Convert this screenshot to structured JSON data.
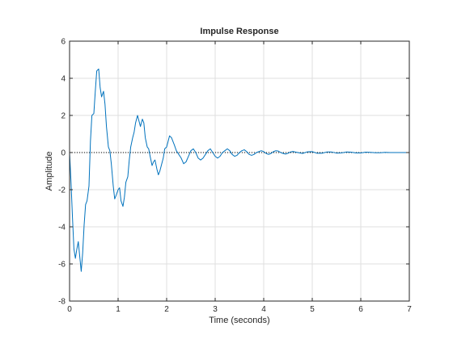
{
  "chart_data": {
    "type": "line",
    "title": "Impulse Response",
    "xlabel": "Time (seconds)",
    "ylabel": "Amplitude",
    "xlim": [
      0,
      7
    ],
    "ylim": [
      -8,
      6
    ],
    "xticks": [
      0,
      1,
      2,
      3,
      4,
      5,
      6,
      7
    ],
    "yticks": [
      -8,
      -6,
      -4,
      -2,
      0,
      2,
      4,
      6
    ],
    "grid": true,
    "reference_line": {
      "y": 0,
      "style": "dotted"
    },
    "series": [
      {
        "color": "#0072bd",
        "x": [
          0,
          0.03,
          0.06,
          0.09,
          0.12,
          0.15,
          0.18,
          0.21,
          0.24,
          0.27,
          0.3,
          0.33,
          0.36,
          0.4,
          0.43,
          0.46,
          0.5,
          0.53,
          0.56,
          0.6,
          0.63,
          0.66,
          0.7,
          0.73,
          0.76,
          0.8,
          0.83,
          0.86,
          0.9,
          0.93,
          0.96,
          1.0,
          1.03,
          1.06,
          1.1,
          1.13,
          1.16,
          1.2,
          1.23,
          1.26,
          1.3,
          1.33,
          1.36,
          1.4,
          1.43,
          1.46,
          1.5,
          1.53,
          1.56,
          1.6,
          1.63,
          1.66,
          1.7,
          1.73,
          1.76,
          1.8,
          1.83,
          1.86,
          1.9,
          1.93,
          1.96,
          2.0,
          2.03,
          2.06,
          2.1,
          2.13,
          2.16,
          2.2,
          2.25,
          2.3,
          2.35,
          2.4,
          2.45,
          2.5,
          2.55,
          2.6,
          2.65,
          2.7,
          2.75,
          2.8,
          2.85,
          2.9,
          2.95,
          3.0,
          3.05,
          3.1,
          3.15,
          3.2,
          3.25,
          3.3,
          3.35,
          3.4,
          3.45,
          3.5,
          3.55,
          3.6,
          3.65,
          3.7,
          3.75,
          3.8,
          3.85,
          3.9,
          3.95,
          4.0,
          4.05,
          4.1,
          4.15,
          4.2,
          4.25,
          4.3,
          4.35,
          4.4,
          4.45,
          4.5,
          4.55,
          4.6,
          4.7,
          4.8,
          4.9,
          5.0,
          5.1,
          5.2,
          5.3,
          5.4,
          5.5,
          5.6,
          5.7,
          5.8,
          5.9,
          6.0,
          6.1,
          6.2,
          6.3,
          6.4,
          6.5,
          6.6,
          6.7,
          6.8,
          6.9,
          7.0
        ],
        "y": [
          0,
          -1.6,
          -3.5,
          -5.2,
          -5.7,
          -5.2,
          -4.8,
          -5.6,
          -6.4,
          -5.4,
          -3.9,
          -2.8,
          -2.6,
          -1.8,
          0.6,
          2.0,
          2.1,
          3.3,
          4.4,
          4.5,
          3.5,
          3.0,
          3.3,
          2.6,
          1.4,
          0.3,
          0.1,
          -0.6,
          -1.8,
          -2.5,
          -2.3,
          -2.0,
          -1.9,
          -2.6,
          -2.9,
          -2.4,
          -1.6,
          -1.3,
          -0.4,
          0.3,
          0.8,
          1.1,
          1.6,
          2.0,
          1.7,
          1.4,
          1.8,
          1.6,
          0.8,
          0.3,
          0.2,
          -0.2,
          -0.7,
          -0.5,
          -0.4,
          -0.9,
          -1.2,
          -1.0,
          -0.6,
          -0.3,
          0.2,
          0.3,
          0.6,
          0.9,
          0.8,
          0.6,
          0.4,
          0.1,
          -0.1,
          -0.3,
          -0.6,
          -0.5,
          -0.2,
          0.1,
          0.2,
          0.0,
          -0.3,
          -0.4,
          -0.3,
          -0.1,
          0.1,
          0.2,
          0.0,
          -0.2,
          -0.3,
          -0.2,
          0.0,
          0.1,
          0.2,
          0.1,
          -0.1,
          -0.2,
          -0.15,
          0.0,
          0.1,
          0.15,
          0.05,
          -0.1,
          -0.15,
          -0.1,
          0.0,
          0.05,
          0.1,
          0.05,
          -0.05,
          -0.1,
          -0.05,
          0.05,
          0.1,
          0.08,
          0.0,
          -0.05,
          -0.08,
          -0.04,
          0.03,
          0.06,
          0.0,
          -0.05,
          0.04,
          0.05,
          -0.04,
          -0.04,
          0.03,
          0.03,
          -0.03,
          -0.02,
          0.03,
          0.02,
          -0.02,
          -0.02,
          0.02,
          0.01,
          -0.01,
          -0.01,
          0.01,
          0.0,
          0.0,
          0.0,
          0.0,
          0.0
        ]
      }
    ]
  }
}
